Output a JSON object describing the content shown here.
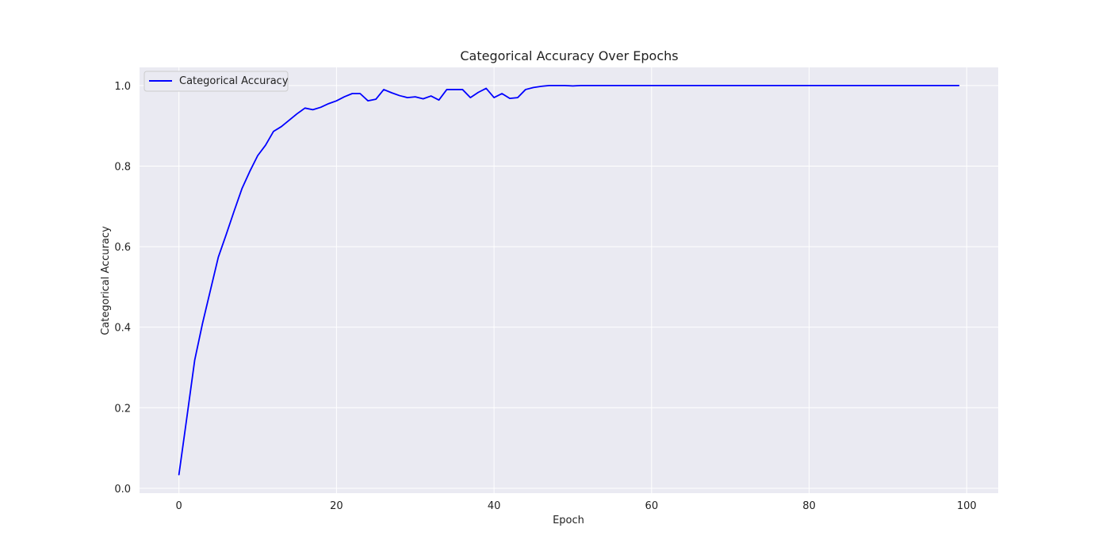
{
  "chart_data": {
    "type": "line",
    "title": "Categorical Accuracy Over Epochs",
    "xlabel": "Epoch",
    "ylabel": "Categorical Accuracy",
    "xlim": [
      -5,
      104
    ],
    "ylim": [
      -0.012,
      1.045
    ],
    "xticks": [
      0,
      20,
      40,
      60,
      80,
      100
    ],
    "yticks": [
      0.0,
      0.2,
      0.4,
      0.6,
      0.8,
      1.0
    ],
    "ytick_labels": [
      "0.0",
      "0.2",
      "0.4",
      "0.6",
      "0.8",
      "1.0"
    ],
    "grid": true,
    "background": "#eaeaf2",
    "legend": {
      "placement": "upper-left",
      "entries": [
        "Categorical Accuracy"
      ]
    },
    "series": [
      {
        "name": "Categorical Accuracy",
        "color": "#0000ff",
        "x": [
          0,
          1,
          2,
          3,
          4,
          5,
          6,
          7,
          8,
          9,
          10,
          11,
          12,
          13,
          14,
          15,
          16,
          17,
          18,
          19,
          20,
          21,
          22,
          23,
          24,
          25,
          26,
          27,
          28,
          29,
          30,
          31,
          32,
          33,
          34,
          35,
          36,
          37,
          38,
          39,
          40,
          41,
          42,
          43,
          44,
          45,
          46,
          47,
          48,
          49,
          50,
          51,
          52,
          53,
          54,
          55,
          56,
          57,
          58,
          59,
          60,
          61,
          62,
          63,
          64,
          65,
          66,
          67,
          68,
          69,
          70,
          71,
          72,
          73,
          74,
          75,
          76,
          77,
          78,
          79,
          80,
          81,
          82,
          83,
          84,
          85,
          86,
          87,
          88,
          89,
          90,
          91,
          92,
          93,
          94,
          95,
          96,
          97,
          98,
          99
        ],
        "values": [
          0.034,
          0.175,
          0.318,
          0.41,
          0.492,
          0.574,
          0.63,
          0.688,
          0.744,
          0.787,
          0.826,
          0.852,
          0.886,
          0.898,
          0.914,
          0.93,
          0.944,
          0.94,
          0.946,
          0.955,
          0.962,
          0.972,
          0.98,
          0.98,
          0.962,
          0.966,
          0.99,
          0.982,
          0.975,
          0.97,
          0.972,
          0.967,
          0.974,
          0.964,
          0.99,
          0.99,
          0.99,
          0.97,
          0.983,
          0.993,
          0.97,
          0.98,
          0.968,
          0.97,
          0.99,
          0.995,
          0.998,
          1.0,
          1.0,
          1.0,
          0.999,
          1.0,
          1.0,
          1.0,
          1.0,
          1.0,
          1.0,
          1.0,
          1.0,
          1.0,
          1.0,
          1.0,
          1.0,
          1.0,
          1.0,
          1.0,
          1.0,
          1.0,
          1.0,
          1.0,
          1.0,
          1.0,
          1.0,
          1.0,
          1.0,
          1.0,
          1.0,
          1.0,
          1.0,
          1.0,
          1.0,
          1.0,
          1.0,
          1.0,
          1.0,
          1.0,
          1.0,
          1.0,
          1.0,
          1.0,
          1.0,
          1.0,
          1.0,
          1.0,
          1.0,
          1.0,
          1.0,
          1.0,
          1.0,
          1.0
        ]
      }
    ]
  }
}
